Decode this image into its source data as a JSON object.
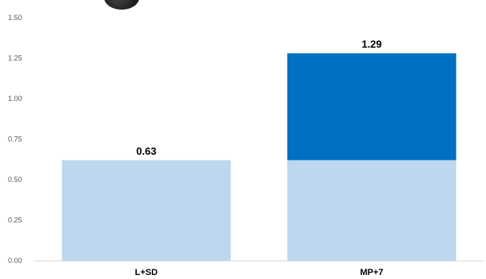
{
  "colors": {
    "base": "#bdd7ee",
    "increment": "#0070c0",
    "axis": "#d9d9d9",
    "badge": "#2b2b2b"
  },
  "badge_icon": "dark-circle-icon",
  "chart_data": {
    "type": "bar",
    "stacked": true,
    "categories": [
      "L+SD",
      "MP+7"
    ],
    "series": [
      {
        "values": [
          0.62,
          0.62
        ],
        "color": "#bdd7ee"
      },
      {
        "values": [
          0,
          0.66
        ],
        "color": "#0070c0"
      }
    ],
    "totals": [
      0.63,
      1.29
    ],
    "total_labels": [
      "0.63",
      "1.29"
    ],
    "y_ticks": [
      "0.00",
      "0.25",
      "0.50",
      "0.75",
      "1.00",
      "1.25",
      "1.50"
    ],
    "ylim": [
      0,
      1.5
    ],
    "grid": false,
    "legend": "none"
  }
}
